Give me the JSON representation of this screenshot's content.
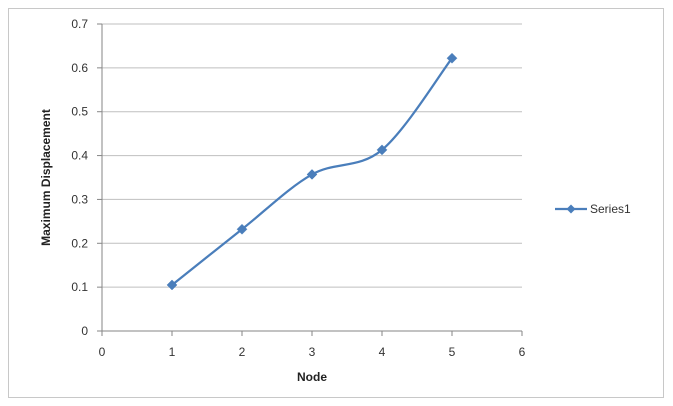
{
  "chart_data": {
    "type": "line",
    "xlabel": "Node",
    "ylabel": "Maximum Displacement",
    "xlim": [
      0,
      6
    ],
    "ylim": [
      0,
      0.7
    ],
    "x_ticks": [
      "0",
      "1",
      "2",
      "3",
      "4",
      "5",
      "6"
    ],
    "y_ticks": [
      "0",
      "0.1",
      "0.2",
      "0.3",
      "0.4",
      "0.5",
      "0.6",
      "0.7"
    ],
    "grid": "horizontal",
    "legend_position": "right",
    "smooth": true,
    "series": [
      {
        "name": "Series1",
        "color": "#4a7ebb",
        "marker": "diamond",
        "x": [
          1,
          2,
          3,
          4,
          5
        ],
        "y": [
          0.105,
          0.232,
          0.357,
          0.413,
          0.622
        ]
      }
    ]
  }
}
